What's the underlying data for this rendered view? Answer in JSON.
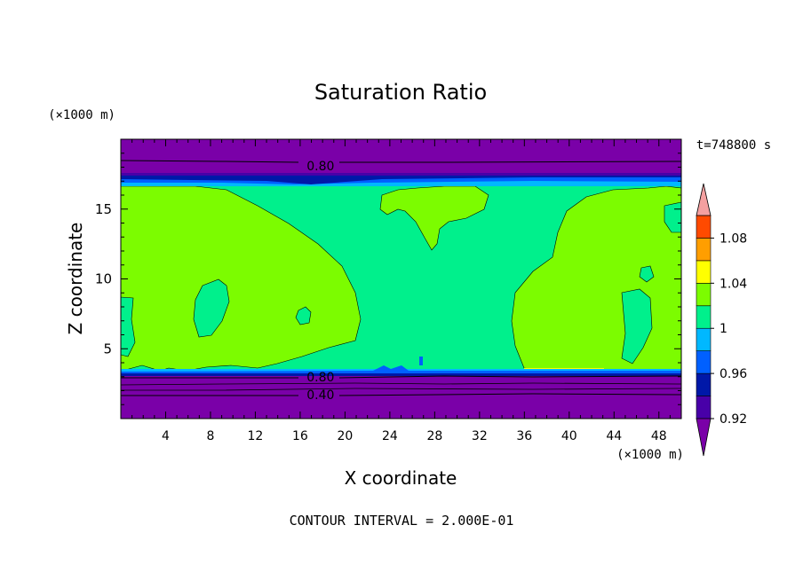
{
  "chart_data": {
    "type": "contour",
    "title": "Saturation Ratio",
    "xlabel": "X coordinate",
    "ylabel": "Z coordinate",
    "x_unit": "(×1000 m)",
    "y_unit": "(×1000 m)",
    "time_label": "t=748800 s",
    "footer": "CONTOUR INTERVAL = 2.000E-01",
    "xlim": [
      0,
      50
    ],
    "ylim": [
      0,
      20
    ],
    "x_ticks": [
      4,
      8,
      12,
      16,
      20,
      24,
      28,
      32,
      36,
      40,
      44,
      48
    ],
    "y_ticks": [
      5,
      10,
      15
    ],
    "contour_line_labels": [
      {
        "text": "0.80",
        "x": 17.5,
        "z": 18.1
      },
      {
        "text": "0.80",
        "x": 17.5,
        "z": 3.0
      },
      {
        "text": "0.40",
        "x": 17.5,
        "z": 1.7
      }
    ],
    "colorbar": {
      "levels": [
        0.92,
        0.94,
        0.96,
        0.98,
        1,
        1.02,
        1.04,
        1.06,
        1.08,
        1.1
      ],
      "tick_labels": [
        "0.92",
        "0.96",
        "1",
        "1.04",
        "1.08"
      ],
      "colors": {
        "below": "#7a00a8",
        "l1": "#4800a8",
        "l2": "#0018a8",
        "l3": "#0060ff",
        "l4": "#00b8ff",
        "l5": "#00f08c",
        "l6": "#7cfc00",
        "l7": "#ffff00",
        "l8": "#ff9e00",
        "l9": "#ff4a00",
        "l10": "#e60000",
        "above": "#f4a0a0"
      }
    }
  }
}
